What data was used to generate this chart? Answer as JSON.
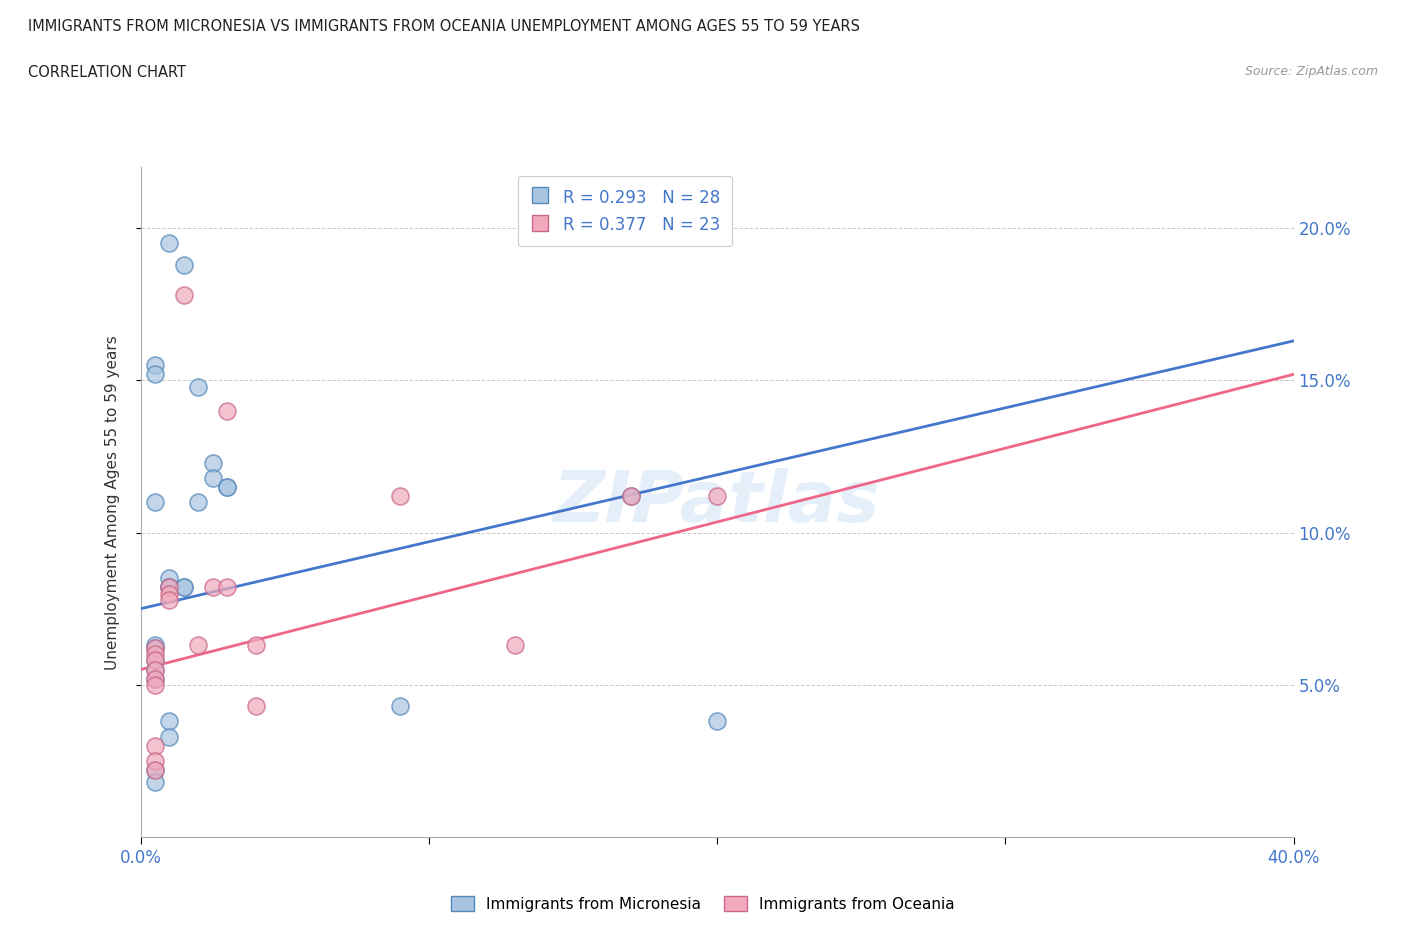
{
  "title_line1": "IMMIGRANTS FROM MICRONESIA VS IMMIGRANTS FROM OCEANIA UNEMPLOYMENT AMONG AGES 55 TO 59 YEARS",
  "title_line2": "CORRELATION CHART",
  "source": "Source: ZipAtlas.com",
  "ylabel": "Unemployment Among Ages 55 to 59 years",
  "xlim": [
    0.0,
    0.4
  ],
  "ylim": [
    0.0,
    0.22
  ],
  "yticks": [
    0.05,
    0.1,
    0.15,
    0.2
  ],
  "ytick_labels": [
    "5.0%",
    "10.0%",
    "15.0%",
    "20.0%"
  ],
  "xticks": [
    0.0,
    0.1,
    0.2,
    0.3,
    0.4
  ],
  "xtick_labels_show": [
    "0.0%",
    "",
    "",
    "",
    "40.0%"
  ],
  "legend_r_blue": "R = 0.293",
  "legend_n_blue": "N = 28",
  "legend_r_pink": "R = 0.377",
  "legend_n_pink": "N = 23",
  "blue_fill": "#A8C4E0",
  "blue_edge": "#5588BB",
  "pink_fill": "#F0AABC",
  "pink_edge": "#CC6688",
  "blue_line_color": "#4477CC",
  "pink_line_color": "#EE6688",
  "watermark": "ZIPatlas",
  "micronesia_x": [
    0.01,
    0.015,
    0.005,
    0.005,
    0.02,
    0.025,
    0.025,
    0.03,
    0.03,
    0.005,
    0.01,
    0.01,
    0.01,
    0.015,
    0.015,
    0.02,
    0.005,
    0.005,
    0.005,
    0.005,
    0.005,
    0.01,
    0.01,
    0.17,
    0.09,
    0.2,
    0.005,
    0.005
  ],
  "micronesia_y": [
    0.195,
    0.188,
    0.155,
    0.152,
    0.148,
    0.123,
    0.118,
    0.115,
    0.115,
    0.11,
    0.085,
    0.082,
    0.082,
    0.082,
    0.082,
    0.11,
    0.063,
    0.062,
    0.058,
    0.055,
    0.052,
    0.038,
    0.033,
    0.112,
    0.043,
    0.038,
    0.022,
    0.018
  ],
  "oceania_x": [
    0.005,
    0.005,
    0.005,
    0.005,
    0.005,
    0.005,
    0.01,
    0.01,
    0.01,
    0.015,
    0.02,
    0.025,
    0.03,
    0.03,
    0.04,
    0.04,
    0.09,
    0.13,
    0.17,
    0.2,
    0.005,
    0.005,
    0.005
  ],
  "oceania_y": [
    0.062,
    0.06,
    0.058,
    0.055,
    0.052,
    0.05,
    0.082,
    0.08,
    0.078,
    0.178,
    0.063,
    0.082,
    0.082,
    0.14,
    0.063,
    0.043,
    0.112,
    0.063,
    0.112,
    0.112,
    0.03,
    0.025,
    0.022
  ],
  "blue_line_x": [
    0.0,
    0.4
  ],
  "blue_line_y": [
    0.075,
    0.163
  ],
  "pink_line_x": [
    0.0,
    0.4
  ],
  "pink_line_y": [
    0.055,
    0.152
  ]
}
